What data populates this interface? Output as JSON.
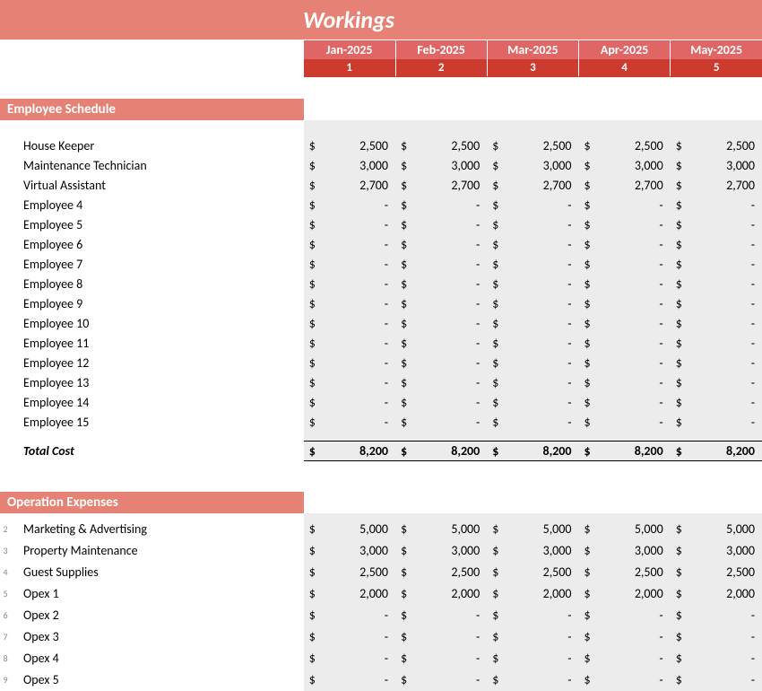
{
  "title": "Workings",
  "months": [
    "Jan-2025",
    "Feb-2025",
    "Mar-2025",
    "Apr-2025",
    "May-2025"
  ],
  "month_numbers": [
    "1",
    "2",
    "3",
    "4",
    "5"
  ],
  "currency_symbol": "$",
  "colors": {
    "title_bg": "#e58275",
    "month_bg": "#e06666",
    "monthnum_bg": "#cc3b2e",
    "section_bg": "#e58275",
    "data_bg": "#ececec"
  },
  "sections": {
    "employee": {
      "header": "Employee Schedule",
      "rows": [
        {
          "label": "House Keeper",
          "values": [
            "2,500",
            "2,500",
            "2,500",
            "2,500",
            "2,500"
          ]
        },
        {
          "label": "Maintenance Technician",
          "values": [
            "3,000",
            "3,000",
            "3,000",
            "3,000",
            "3,000"
          ]
        },
        {
          "label": "Virtual Assistant",
          "values": [
            "2,700",
            "2,700",
            "2,700",
            "2,700",
            "2,700"
          ]
        },
        {
          "label": "Employee 4",
          "values": [
            "-",
            "-",
            "-",
            "-",
            "-"
          ]
        },
        {
          "label": "Employee 5",
          "values": [
            "-",
            "-",
            "-",
            "-",
            "-"
          ]
        },
        {
          "label": "Employee 6",
          "values": [
            "-",
            "-",
            "-",
            "-",
            "-"
          ]
        },
        {
          "label": "Employee 7",
          "values": [
            "-",
            "-",
            "-",
            "-",
            "-"
          ]
        },
        {
          "label": "Employee 8",
          "values": [
            "-",
            "-",
            "-",
            "-",
            "-"
          ]
        },
        {
          "label": "Employee 9",
          "values": [
            "-",
            "-",
            "-",
            "-",
            "-"
          ]
        },
        {
          "label": "Employee 10",
          "values": [
            "-",
            "-",
            "-",
            "-",
            "-"
          ]
        },
        {
          "label": "Employee 11",
          "values": [
            "-",
            "-",
            "-",
            "-",
            "-"
          ]
        },
        {
          "label": "Employee 12",
          "values": [
            "-",
            "-",
            "-",
            "-",
            "-"
          ]
        },
        {
          "label": "Employee 13",
          "values": [
            "-",
            "-",
            "-",
            "-",
            "-"
          ]
        },
        {
          "label": "Employee 14",
          "values": [
            "-",
            "-",
            "-",
            "-",
            "-"
          ]
        },
        {
          "label": "Employee 15",
          "values": [
            "-",
            "-",
            "-",
            "-",
            "-"
          ]
        }
      ],
      "total_label": "Total Cost",
      "total_values": [
        "8,200",
        "8,200",
        "8,200",
        "8,200",
        "8,200"
      ]
    },
    "opex": {
      "header": "Operation Expenses",
      "rows": [
        {
          "num": "2",
          "label": "Marketing & Advertising",
          "values": [
            "5,000",
            "5,000",
            "5,000",
            "5,000",
            "5,000"
          ]
        },
        {
          "num": "3",
          "label": "Property Maintenance",
          "values": [
            "3,000",
            "3,000",
            "3,000",
            "3,000",
            "3,000"
          ]
        },
        {
          "num": "4",
          "label": "Guest Supplies",
          "values": [
            "2,500",
            "2,500",
            "2,500",
            "2,500",
            "2,500"
          ]
        },
        {
          "num": "5",
          "label": "Opex 1",
          "values": [
            "2,000",
            "2,000",
            "2,000",
            "2,000",
            "2,000"
          ]
        },
        {
          "num": "6",
          "label": "Opex 2",
          "values": [
            "-",
            "-",
            "-",
            "-",
            "-"
          ]
        },
        {
          "num": "7",
          "label": "Opex 3",
          "values": [
            "-",
            "-",
            "-",
            "-",
            "-"
          ]
        },
        {
          "num": "8",
          "label": "Opex 4",
          "values": [
            "-",
            "-",
            "-",
            "-",
            "-"
          ]
        },
        {
          "num": "9",
          "label": "Opex 5",
          "values": [
            "-",
            "-",
            "-",
            "-",
            "-"
          ]
        }
      ]
    }
  }
}
